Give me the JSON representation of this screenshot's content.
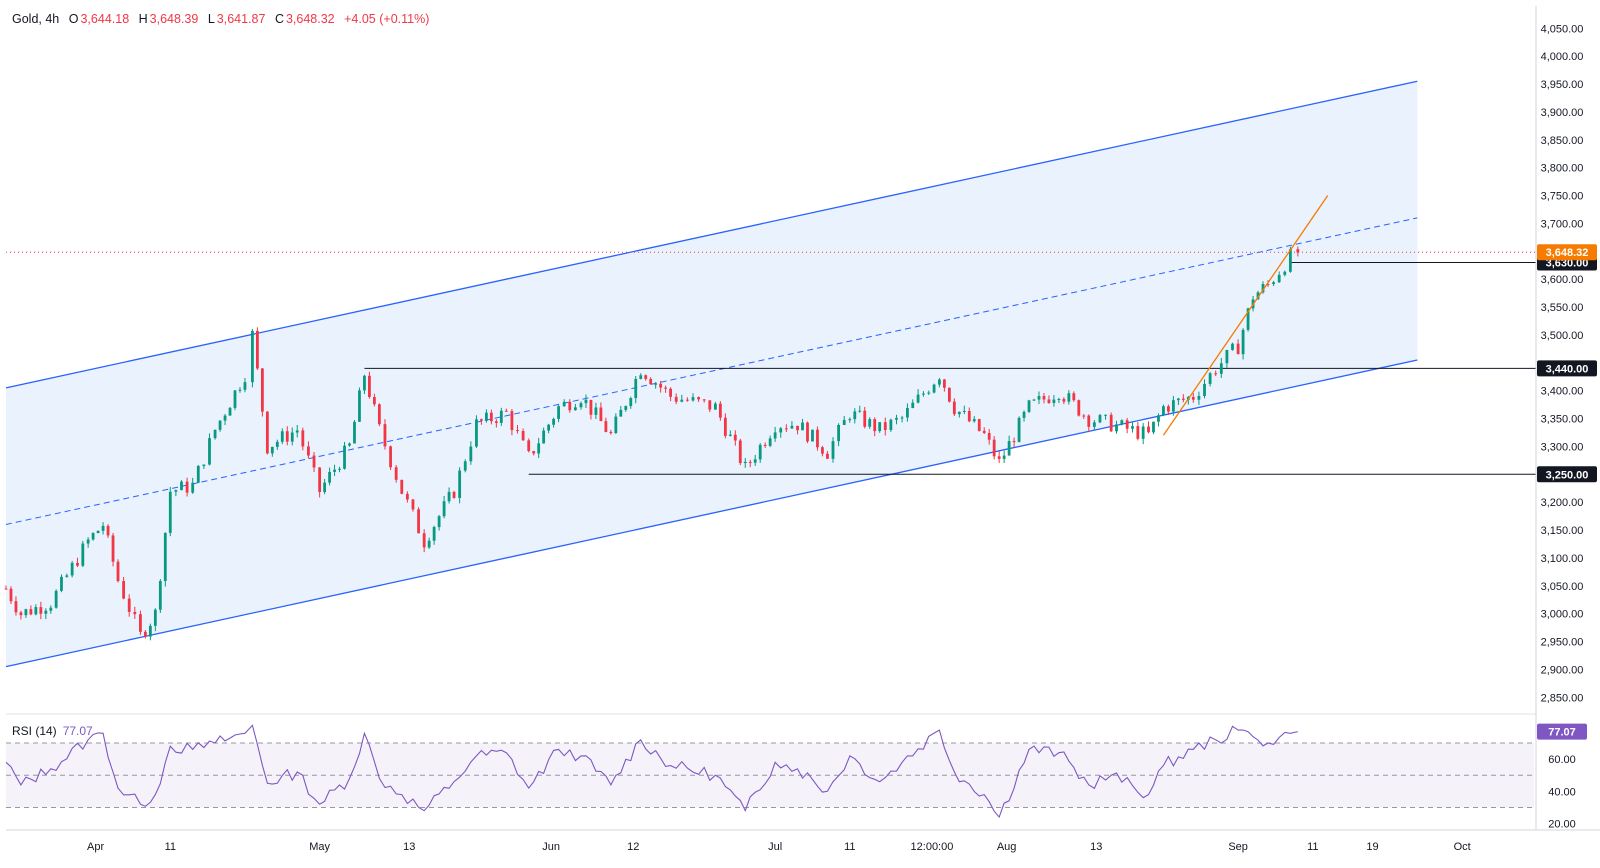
{
  "header": {
    "symbol": "Gold, 4h",
    "open_label": "O",
    "open": "3,644.18",
    "high_label": "H",
    "high": "3,648.39",
    "low_label": "L",
    "low": "3,641.87",
    "close_label": "C",
    "close": "3,648.32",
    "change": "+4.05 (+0.11%)"
  },
  "rsi": {
    "label": "RSI (14)",
    "value": "77.07"
  },
  "colors": {
    "up": "#089981",
    "down": "#f23645",
    "channel": "#2962ff",
    "channel_fill": "#e3effc",
    "trend": "#f57c00",
    "rsi": "#7e57c2",
    "price_badge": "#f57c00",
    "level_badge": "#131722"
  },
  "chart_data": [
    {
      "type": "candlestick",
      "title": "Gold, 4h",
      "y_axis_ticks": [
        "4,050.00",
        "4,000.00",
        "3,950.00",
        "3,900.00",
        "3,850.00",
        "3,800.00",
        "3,750.00",
        "3,700.00",
        "3,600.00",
        "3,550.00",
        "3,500.00",
        "3,400.00",
        "3,350.00",
        "3,300.00",
        "3,200.00",
        "3,150.00",
        "3,100.00",
        "3,050.00",
        "3,000.00",
        "2,950.00",
        "2,900.00",
        "2,850.00"
      ],
      "ylim": [
        2820,
        4090
      ],
      "x_axis_ticks": [
        "Apr",
        "11",
        "May",
        "13",
        "Jun",
        "12",
        "Jul",
        "11",
        "12:00:00",
        "Aug",
        "13",
        "Sep",
        "11",
        "19",
        "Oct"
      ],
      "price_path": [
        {
          "date": "2025-03-20",
          "price": 3045
        },
        {
          "date": "2025-03-22",
          "price": 3000
        },
        {
          "date": "2025-03-26",
          "price": 3020
        },
        {
          "date": "2025-03-31",
          "price": 3130
        },
        {
          "date": "2025-04-02",
          "price": 3160
        },
        {
          "date": "2025-04-04",
          "price": 3060
        },
        {
          "date": "2025-04-07",
          "price": 2960
        },
        {
          "date": "2025-04-09",
          "price": 3000
        },
        {
          "date": "2025-04-11",
          "price": 3220
        },
        {
          "date": "2025-04-14",
          "price": 3230
        },
        {
          "date": "2025-04-17",
          "price": 3330
        },
        {
          "date": "2025-04-21",
          "price": 3430
        },
        {
          "date": "2025-04-22",
          "price": 3500
        },
        {
          "date": "2025-04-24",
          "price": 3300
        },
        {
          "date": "2025-04-28",
          "price": 3330
        },
        {
          "date": "2025-05-01",
          "price": 3220
        },
        {
          "date": "2025-05-05",
          "price": 3300
        },
        {
          "date": "2025-05-07",
          "price": 3430
        },
        {
          "date": "2025-05-09",
          "price": 3330
        },
        {
          "date": "2025-05-12",
          "price": 3220
        },
        {
          "date": "2025-05-15",
          "price": 3130
        },
        {
          "date": "2025-05-19",
          "price": 3220
        },
        {
          "date": "2025-05-22",
          "price": 3340
        },
        {
          "date": "2025-05-26",
          "price": 3360
        },
        {
          "date": "2025-05-29",
          "price": 3280
        },
        {
          "date": "2025-06-02",
          "price": 3370
        },
        {
          "date": "2025-06-05",
          "price": 3390
        },
        {
          "date": "2025-06-09",
          "price": 3320
        },
        {
          "date": "2025-06-13",
          "price": 3440
        },
        {
          "date": "2025-06-17",
          "price": 3390
        },
        {
          "date": "2025-06-23",
          "price": 3370
        },
        {
          "date": "2025-06-27",
          "price": 3260
        },
        {
          "date": "2025-07-01",
          "price": 3340
        },
        {
          "date": "2025-07-04",
          "price": 3340
        },
        {
          "date": "2025-07-08",
          "price": 3290
        },
        {
          "date": "2025-07-11",
          "price": 3360
        },
        {
          "date": "2025-07-15",
          "price": 3330
        },
        {
          "date": "2025-07-18",
          "price": 3350
        },
        {
          "date": "2025-07-23",
          "price": 3430
        },
        {
          "date": "2025-07-25",
          "price": 3370
        },
        {
          "date": "2025-07-29",
          "price": 3320
        },
        {
          "date": "2025-07-31",
          "price": 3270
        },
        {
          "date": "2025-08-04",
          "price": 3370
        },
        {
          "date": "2025-08-08",
          "price": 3400
        },
        {
          "date": "2025-08-12",
          "price": 3350
        },
        {
          "date": "2025-08-15",
          "price": 3340
        },
        {
          "date": "2025-08-20",
          "price": 3320
        },
        {
          "date": "2025-08-22",
          "price": 3370
        },
        {
          "date": "2025-08-26",
          "price": 3390
        },
        {
          "date": "2025-08-29",
          "price": 3440
        },
        {
          "date": "2025-09-01",
          "price": 3480
        },
        {
          "date": "2025-09-03",
          "price": 3570
        },
        {
          "date": "2025-09-05",
          "price": 3590
        },
        {
          "date": "2025-09-08",
          "price": 3640
        },
        {
          "date": "2025-09-09",
          "price": 3648
        }
      ],
      "annotations": {
        "channel_upper": [
          {
            "date": "2025-03-20",
            "price": 3405
          },
          {
            "date": "2025-09-25",
            "price": 3955
          }
        ],
        "channel_mid": [
          {
            "date": "2025-03-20",
            "price": 3160
          },
          {
            "date": "2025-09-25",
            "price": 3710
          }
        ],
        "channel_lower": [
          {
            "date": "2025-03-20",
            "price": 2905
          },
          {
            "date": "2025-09-25",
            "price": 3455
          }
        ],
        "trendline": [
          {
            "date": "2025-08-22",
            "price": 3320
          },
          {
            "date": "2025-09-13",
            "price": 3750
          }
        ],
        "horizontal_levels": [
          {
            "label": "3,630.00",
            "value": 3630,
            "from": "2025-09-08"
          },
          {
            "label": "3,440.00",
            "value": 3440,
            "from": "2025-05-07"
          },
          {
            "label": "3,250.00",
            "value": 3250,
            "from": "2025-05-29"
          }
        ],
        "current_price": {
          "label": "3,648.32",
          "value": 3648.32
        }
      }
    },
    {
      "type": "line",
      "title": "RSI (14)",
      "y_axis_ticks": [
        "60.00",
        "40.00",
        "20.00"
      ],
      "ylim": [
        16,
        88
      ],
      "bands": [
        70,
        50,
        30
      ],
      "current": {
        "label": "77.07",
        "value": 77.07
      },
      "rsi_path": [
        {
          "date": "2025-03-20",
          "value": 58
        },
        {
          "date": "2025-03-22",
          "value": 44
        },
        {
          "date": "2025-03-26",
          "value": 54
        },
        {
          "date": "2025-03-31",
          "value": 72
        },
        {
          "date": "2025-04-02",
          "value": 76
        },
        {
          "date": "2025-04-04",
          "value": 42
        },
        {
          "date": "2025-04-07",
          "value": 32
        },
        {
          "date": "2025-04-09",
          "value": 38
        },
        {
          "date": "2025-04-11",
          "value": 68
        },
        {
          "date": "2025-04-14",
          "value": 66
        },
        {
          "date": "2025-04-17",
          "value": 70
        },
        {
          "date": "2025-04-21",
          "value": 76
        },
        {
          "date": "2025-04-22",
          "value": 81
        },
        {
          "date": "2025-04-24",
          "value": 45
        },
        {
          "date": "2025-04-28",
          "value": 52
        },
        {
          "date": "2025-05-01",
          "value": 32
        },
        {
          "date": "2025-05-05",
          "value": 48
        },
        {
          "date": "2025-05-07",
          "value": 76
        },
        {
          "date": "2025-05-09",
          "value": 48
        },
        {
          "date": "2025-05-12",
          "value": 38
        },
        {
          "date": "2025-05-15",
          "value": 28
        },
        {
          "date": "2025-05-19",
          "value": 46
        },
        {
          "date": "2025-05-22",
          "value": 62
        },
        {
          "date": "2025-05-26",
          "value": 64
        },
        {
          "date": "2025-05-29",
          "value": 42
        },
        {
          "date": "2025-06-02",
          "value": 66
        },
        {
          "date": "2025-06-05",
          "value": 62
        },
        {
          "date": "2025-06-09",
          "value": 44
        },
        {
          "date": "2025-06-13",
          "value": 72
        },
        {
          "date": "2025-06-17",
          "value": 56
        },
        {
          "date": "2025-06-23",
          "value": 50
        },
        {
          "date": "2025-06-27",
          "value": 28
        },
        {
          "date": "2025-07-01",
          "value": 58
        },
        {
          "date": "2025-07-04",
          "value": 54
        },
        {
          "date": "2025-07-08",
          "value": 40
        },
        {
          "date": "2025-07-11",
          "value": 62
        },
        {
          "date": "2025-07-15",
          "value": 46
        },
        {
          "date": "2025-07-18",
          "value": 58
        },
        {
          "date": "2025-07-23",
          "value": 78
        },
        {
          "date": "2025-07-25",
          "value": 52
        },
        {
          "date": "2025-07-29",
          "value": 38
        },
        {
          "date": "2025-07-31",
          "value": 24
        },
        {
          "date": "2025-08-04",
          "value": 66
        },
        {
          "date": "2025-08-08",
          "value": 64
        },
        {
          "date": "2025-08-12",
          "value": 44
        },
        {
          "date": "2025-08-15",
          "value": 50
        },
        {
          "date": "2025-08-20",
          "value": 38
        },
        {
          "date": "2025-08-22",
          "value": 56
        },
        {
          "date": "2025-08-26",
          "value": 66
        },
        {
          "date": "2025-08-29",
          "value": 72
        },
        {
          "date": "2025-09-01",
          "value": 78
        },
        {
          "date": "2025-09-03",
          "value": 74
        },
        {
          "date": "2025-09-05",
          "value": 70
        },
        {
          "date": "2025-09-08",
          "value": 76
        },
        {
          "date": "2025-09-09",
          "value": 77.07
        }
      ]
    }
  ]
}
